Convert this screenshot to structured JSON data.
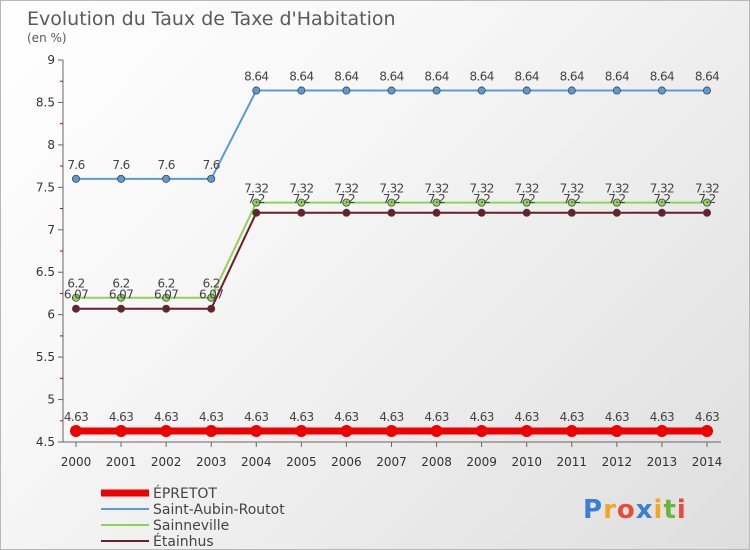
{
  "chart_data": {
    "type": "line",
    "title": "Evolution du Taux de Taxe d'Habitation",
    "subtitle": "(en %)",
    "xlabel": "",
    "ylabel": "",
    "x": [
      "2000",
      "2001",
      "2002",
      "2003",
      "2004",
      "2005",
      "2006",
      "2007",
      "2008",
      "2009",
      "2010",
      "2011",
      "2012",
      "2013",
      "2014"
    ],
    "ylim": [
      4.5,
      9
    ],
    "yticks": [
      "4.5",
      "5",
      "5.5",
      "6",
      "6.5",
      "7",
      "7.5",
      "8",
      "8.5",
      "9"
    ],
    "series": [
      {
        "name": "Saint-Aubin-Routot",
        "color": "#5b9bd5",
        "values": [
          7.6,
          7.6,
          7.6,
          7.6,
          8.64,
          8.64,
          8.64,
          8.64,
          8.64,
          8.64,
          8.64,
          8.64,
          8.64,
          8.64,
          8.64
        ],
        "labels": [
          "7.6",
          "7.6",
          "7.6",
          "7.6",
          "8.64",
          "8.64",
          "8.64",
          "8.64",
          "8.64",
          "8.64",
          "8.64",
          "8.64",
          "8.64",
          "8.64",
          "8.64"
        ]
      },
      {
        "name": "Sainneville",
        "color": "#8fd45a",
        "values": [
          6.2,
          6.2,
          6.2,
          6.2,
          7.32,
          7.32,
          7.32,
          7.32,
          7.32,
          7.32,
          7.32,
          7.32,
          7.32,
          7.32,
          7.32
        ],
        "labels": [
          "6.2",
          "6.2",
          "6.2",
          "6.2",
          "7.32",
          "7.32",
          "7.32",
          "7.32",
          "7.32",
          "7.32",
          "7.32",
          "7.32",
          "7.32",
          "7.32",
          "7.32"
        ]
      },
      {
        "name": "Étainhus",
        "color": "#6b1f2a",
        "values": [
          6.07,
          6.07,
          6.07,
          6.07,
          7.2,
          7.2,
          7.2,
          7.2,
          7.2,
          7.2,
          7.2,
          7.2,
          7.2,
          7.2,
          7.2
        ],
        "labels": [
          "6.07",
          "6.07",
          "6.07",
          "6.07",
          "7.2",
          "7.2",
          "7.2",
          "7.2",
          "7.2",
          "7.2",
          "7.2",
          "7.2",
          "7.2",
          "7.2",
          "7.2"
        ]
      },
      {
        "name": "ÉPRETOT",
        "color": "#ee0000",
        "values": [
          4.63,
          4.63,
          4.63,
          4.63,
          4.63,
          4.63,
          4.63,
          4.63,
          4.63,
          4.63,
          4.63,
          4.63,
          4.63,
          4.63,
          4.63
        ],
        "labels": [
          "4.63",
          "4.63",
          "4.63",
          "4.63",
          "4.63",
          "4.63",
          "4.63",
          "4.63",
          "4.63",
          "4.63",
          "4.63",
          "4.63",
          "4.63",
          "4.63",
          "4.63"
        ]
      }
    ],
    "legend": [
      "ÉPRETOT",
      "Saint-Aubin-Routot",
      "Sainneville",
      "Étainhus"
    ],
    "legend_position": "bottom-left",
    "grid": false
  },
  "brand": {
    "letters": [
      "P",
      "r",
      "o",
      "x",
      "i",
      "t",
      "i"
    ],
    "colors": [
      "#3a7fd0",
      "#f2a623",
      "#e74c3c",
      "#3a7fd0",
      "#f2a623",
      "#67b83a",
      "#e74c3c"
    ]
  }
}
